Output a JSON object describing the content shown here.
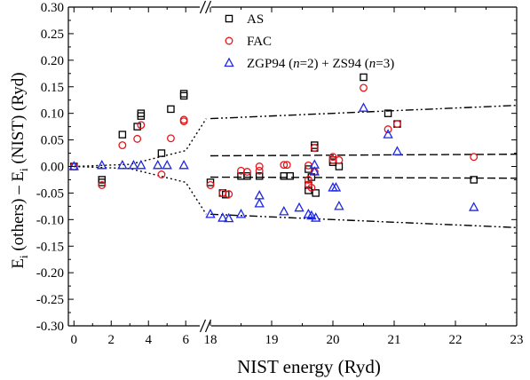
{
  "chart_data": {
    "type": "scatter",
    "title": "",
    "xlabel": "NIST energy (Ryd)",
    "ylabel": {
      "parts": [
        "E",
        "i",
        " (others) – E",
        "i",
        " (NIST) (Ryd)"
      ]
    },
    "ylim": [
      -0.3,
      0.3
    ],
    "ytick_values": [
      -0.3,
      -0.25,
      -0.2,
      -0.15,
      -0.1,
      -0.05,
      0.0,
      0.05,
      0.1,
      0.15,
      0.2,
      0.25,
      0.3
    ],
    "ytick_labels": [
      "-0.30",
      "-0.25",
      "-0.20",
      "-0.15",
      "-0.10",
      "-0.05",
      "0.00",
      "0.05",
      "0.10",
      "0.15",
      "0.20",
      "0.25",
      "0.30"
    ],
    "x_broken_axis": true,
    "x_segments": [
      {
        "range": [
          -0.3,
          6.8
        ],
        "ticks": [
          0,
          2,
          4,
          6
        ],
        "tick_labels": [
          "0",
          "2",
          "4",
          "6"
        ]
      },
      {
        "range": [
          18,
          23
        ],
        "ticks": [
          18,
          19,
          20,
          21,
          22,
          23
        ],
        "tick_labels": [
          "18",
          "19",
          "20",
          "21",
          "22",
          "23"
        ]
      }
    ],
    "legend": {
      "position": "top-center",
      "entries": [
        {
          "label": "AS",
          "marker": "square",
          "color": "#000000"
        },
        {
          "label": "FAC",
          "marker": "circle",
          "color": "#e8141a"
        },
        {
          "label_parts": [
            "ZGP94 (",
            "n",
            "=2) + ZS94 (",
            "n",
            "=3)"
          ],
          "marker": "triangle",
          "color": "#1d27e6"
        }
      ]
    },
    "series": [
      {
        "name": "AS",
        "marker": "square",
        "color": "#000000",
        "points": [
          [
            0,
            0.0
          ],
          [
            1.5,
            -0.025
          ],
          [
            1.5,
            -0.03
          ],
          [
            2.6,
            0.06
          ],
          [
            3.4,
            0.075
          ],
          [
            3.6,
            0.095
          ],
          [
            3.6,
            0.1
          ],
          [
            4.7,
            0.025
          ],
          [
            5.2,
            0.108
          ],
          [
            5.9,
            0.133
          ],
          [
            5.9,
            0.137
          ],
          [
            18.0,
            -0.03
          ],
          [
            18.2,
            -0.05
          ],
          [
            18.25,
            -0.053
          ],
          [
            18.5,
            -0.018
          ],
          [
            18.6,
            -0.018
          ],
          [
            18.8,
            -0.018
          ],
          [
            19.2,
            -0.018
          ],
          [
            19.3,
            -0.018
          ],
          [
            19.6,
            -0.005
          ],
          [
            19.6,
            -0.035
          ],
          [
            19.6,
            -0.045
          ],
          [
            19.65,
            -0.02
          ],
          [
            19.7,
            0.04
          ],
          [
            19.7,
            0.035
          ],
          [
            19.72,
            -0.05
          ],
          [
            20.0,
            0.012
          ],
          [
            20.0,
            0.008
          ],
          [
            20.1,
            0.0
          ],
          [
            20.5,
            0.168
          ],
          [
            20.9,
            0.1
          ],
          [
            21.05,
            0.08
          ],
          [
            22.3,
            -0.025
          ]
        ]
      },
      {
        "name": "FAC",
        "marker": "circle",
        "color": "#e8141a",
        "points": [
          [
            0,
            0.0
          ],
          [
            1.5,
            -0.035
          ],
          [
            2.6,
            0.04
          ],
          [
            3.4,
            0.052
          ],
          [
            3.6,
            0.078
          ],
          [
            4.7,
            -0.015
          ],
          [
            5.2,
            0.053
          ],
          [
            5.9,
            0.085
          ],
          [
            5.9,
            0.088
          ],
          [
            18.0,
            -0.035
          ],
          [
            18.2,
            -0.05
          ],
          [
            18.3,
            -0.052
          ],
          [
            18.5,
            -0.008
          ],
          [
            18.6,
            -0.01
          ],
          [
            18.8,
            0.0
          ],
          [
            18.8,
            -0.008
          ],
          [
            19.2,
            0.003
          ],
          [
            19.25,
            0.003
          ],
          [
            19.6,
            0.002
          ],
          [
            19.6,
            -0.025
          ],
          [
            19.6,
            -0.035
          ],
          [
            19.65,
            -0.04
          ],
          [
            19.7,
            0.035
          ],
          [
            19.7,
            -0.01
          ],
          [
            20.0,
            0.018
          ],
          [
            20.0,
            0.012
          ],
          [
            20.1,
            0.012
          ],
          [
            20.5,
            0.148
          ],
          [
            20.9,
            0.07
          ],
          [
            21.05,
            0.08
          ],
          [
            22.3,
            0.018
          ]
        ]
      },
      {
        "name": "ZGP94 (n=2) + ZS94 (n=3)",
        "marker": "triangle",
        "color": "#1d27e6",
        "points": [
          [
            0,
            0.0
          ],
          [
            1.5,
            0.002
          ],
          [
            2.6,
            0.002
          ],
          [
            3.2,
            0.002
          ],
          [
            3.6,
            0.002
          ],
          [
            4.5,
            0.002
          ],
          [
            5.0,
            0.002
          ],
          [
            5.9,
            0.002
          ],
          [
            18.0,
            -0.09
          ],
          [
            18.2,
            -0.097
          ],
          [
            18.3,
            -0.098
          ],
          [
            18.5,
            -0.09
          ],
          [
            18.8,
            -0.055
          ],
          [
            18.8,
            -0.07
          ],
          [
            19.2,
            -0.085
          ],
          [
            19.45,
            -0.078
          ],
          [
            19.6,
            -0.09
          ],
          [
            19.65,
            -0.093
          ],
          [
            19.7,
            0.003
          ],
          [
            19.7,
            -0.01
          ],
          [
            19.72,
            -0.097
          ],
          [
            20.0,
            -0.04
          ],
          [
            20.05,
            -0.04
          ],
          [
            20.1,
            -0.075
          ],
          [
            20.5,
            0.11
          ],
          [
            20.9,
            0.06
          ],
          [
            21.05,
            0.028
          ],
          [
            22.3,
            -0.077
          ]
        ]
      }
    ],
    "reference_lines": [
      {
        "style": "dash",
        "points": [
          [
            18,
            0.02
          ],
          [
            23,
            0.023
          ]
        ]
      },
      {
        "style": "dash",
        "points": [
          [
            18,
            -0.02
          ],
          [
            23,
            -0.022
          ]
        ]
      },
      {
        "style": "dash-dot-dot",
        "points": [
          [
            18,
            0.09
          ],
          [
            23,
            0.115
          ]
        ]
      },
      {
        "style": "dash-dot-dot",
        "points": [
          [
            18,
            -0.09
          ],
          [
            23,
            -0.115
          ]
        ]
      },
      {
        "style": "dot",
        "points": [
          [
            0,
            0.0
          ],
          [
            3,
            0.004
          ],
          [
            6,
            0.03
          ],
          [
            7.1,
            0.09
          ]
        ]
      },
      {
        "style": "dot",
        "points": [
          [
            0,
            0.0
          ],
          [
            3,
            -0.004
          ],
          [
            6,
            -0.03
          ],
          [
            7.1,
            -0.09
          ]
        ]
      }
    ]
  }
}
